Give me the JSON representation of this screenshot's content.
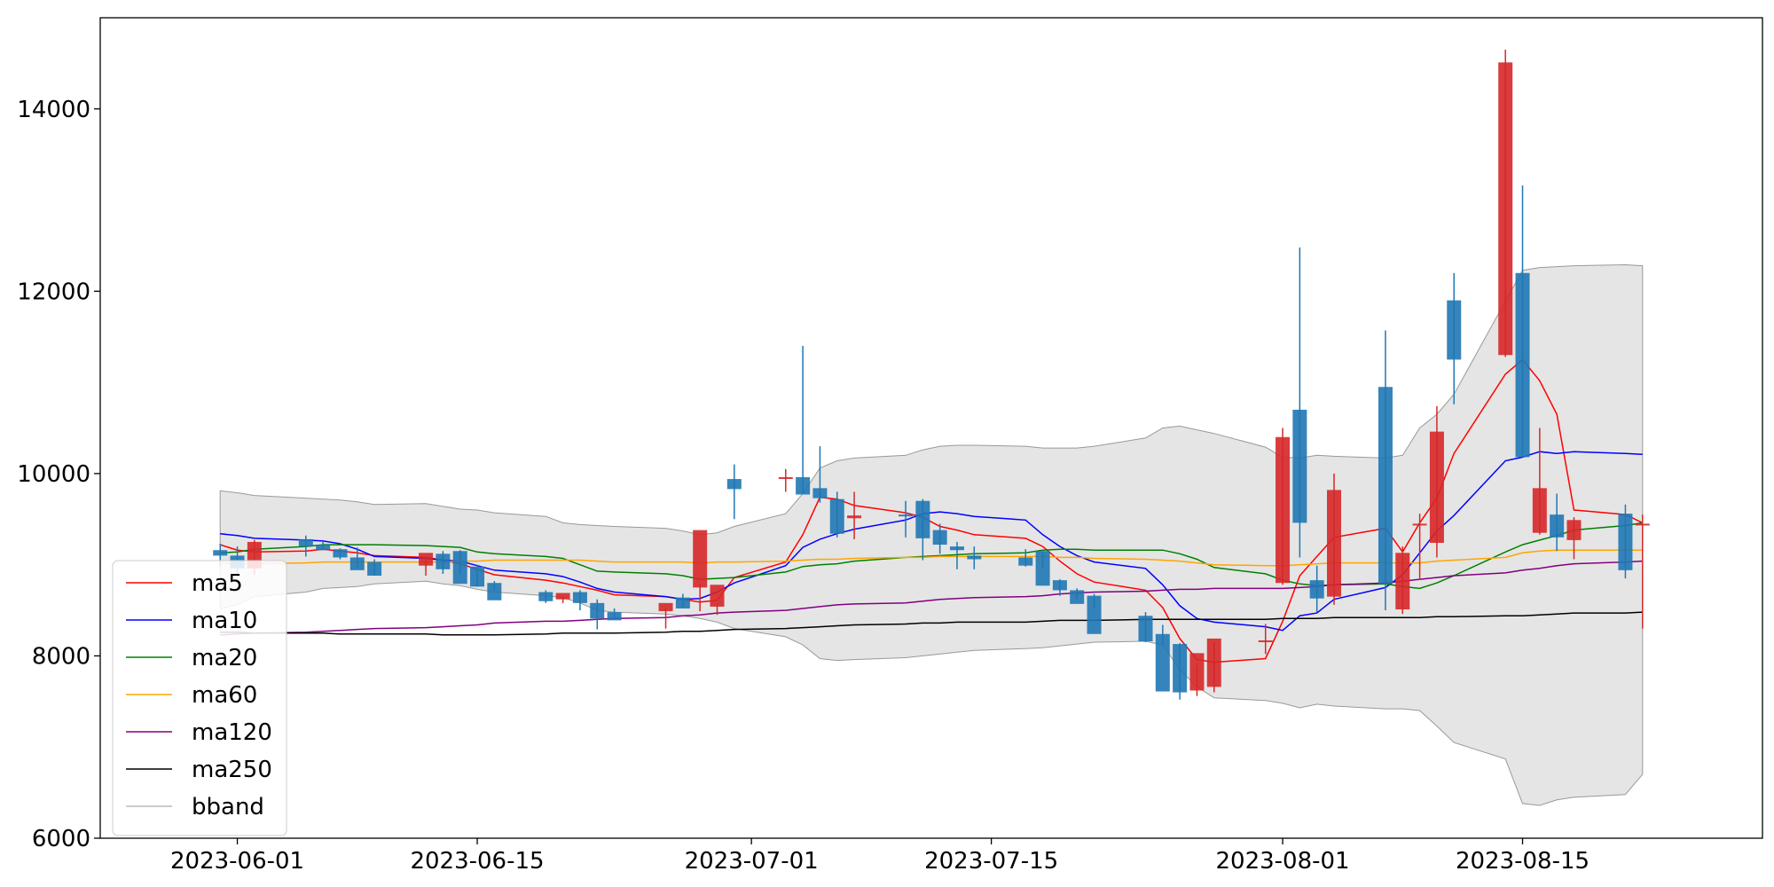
{
  "chart_data": {
    "type": "candlestick",
    "title": "",
    "xlabel": "",
    "ylabel": "",
    "ylim": [
      6000,
      15000
    ],
    "xlim": [
      "2023-05-24",
      "2023-08-29"
    ],
    "x_ticks": [
      "2023-06-01",
      "2023-06-15",
      "2023-07-01",
      "2023-07-15",
      "2023-08-01",
      "2023-08-15"
    ],
    "y_ticks": [
      6000,
      8000,
      10000,
      12000,
      14000
    ],
    "grid": false,
    "legend_position": "lower-left",
    "up_color": "#d62728",
    "down_color": "#1f77b4",
    "band_color": "#e5e5e5",
    "candles": {
      "date": [
        "2023-05-31",
        "2023-06-01",
        "2023-06-02",
        "2023-06-05",
        "2023-06-06",
        "2023-06-07",
        "2023-06-08",
        "2023-06-09",
        "2023-06-12",
        "2023-06-13",
        "2023-06-14",
        "2023-06-15",
        "2023-06-16",
        "2023-06-19",
        "2023-06-20",
        "2023-06-21",
        "2023-06-22",
        "2023-06-23",
        "2023-06-26",
        "2023-06-27",
        "2023-06-28",
        "2023-06-29",
        "2023-06-30",
        "2023-07-03",
        "2023-07-04",
        "2023-07-05",
        "2023-07-06",
        "2023-07-07",
        "2023-07-10",
        "2023-07-11",
        "2023-07-12",
        "2023-07-13",
        "2023-07-14",
        "2023-07-17",
        "2023-07-18",
        "2023-07-19",
        "2023-07-20",
        "2023-07-21",
        "2023-07-24",
        "2023-07-25",
        "2023-07-26",
        "2023-07-27",
        "2023-07-28",
        "2023-07-31",
        "2023-08-01",
        "2023-08-02",
        "2023-08-03",
        "2023-08-04",
        "2023-08-07",
        "2023-08-08",
        "2023-08-09",
        "2023-08-10",
        "2023-08-11",
        "2023-08-14",
        "2023-08-15",
        "2023-08-16",
        "2023-08-17",
        "2023-08-18",
        "2023-08-21",
        "2023-08-22"
      ],
      "open": [
        9160,
        9100,
        8960,
        9280,
        9220,
        9170,
        9080,
        9030,
        8990,
        9120,
        9150,
        8980,
        8800,
        8700,
        8620,
        8700,
        8580,
        8480,
        8490,
        8640,
        8750,
        8540,
        9940,
        9960,
        9960,
        9840,
        9720,
        9510,
        9550,
        9700,
        9380,
        9200,
        9100,
        9080,
        9150,
        8830,
        8720,
        8660,
        8440,
        8240,
        8130,
        7620,
        7660,
        8160,
        8800,
        10700,
        8830,
        8650,
        10950,
        8510,
        9450,
        9240,
        11900,
        11300,
        12200,
        9350,
        9550,
        9270,
        9560,
        9450
      ],
      "high": [
        9230,
        9200,
        9270,
        9320,
        9260,
        9180,
        9190,
        9060,
        9070,
        9150,
        9160,
        9000,
        8820,
        8720,
        8650,
        8720,
        8620,
        8520,
        8530,
        8680,
        8790,
        8570,
        10100,
        10050,
        11400,
        10300,
        9800,
        9800,
        9700,
        9720,
        9450,
        9250,
        9200,
        9170,
        9160,
        8840,
        8740,
        8680,
        8480,
        8340,
        8140,
        7900,
        8150,
        8350,
        10500,
        12480,
        8990,
        10000,
        11570,
        9200,
        9560,
        10740,
        12200,
        14650,
        13160,
        10500,
        9780,
        9520,
        9660,
        9550
      ],
      "low": [
        8980,
        8880,
        8890,
        9090,
        9160,
        9060,
        8960,
        8880,
        8880,
        8900,
        8890,
        8760,
        8720,
        8580,
        8580,
        8500,
        8290,
        8420,
        8300,
        8540,
        8490,
        8450,
        9500,
        9800,
        9780,
        9680,
        9300,
        9280,
        9300,
        9050,
        9120,
        8950,
        8950,
        8980,
        8960,
        8660,
        8620,
        8520,
        8150,
        8120,
        7520,
        7560,
        7600,
        8020,
        8780,
        9080,
        8480,
        8560,
        8500,
        8460,
        8850,
        9080,
        10760,
        11280,
        10200,
        9330,
        9150,
        9060,
        8850,
        8300
      ],
      "close": [
        9100,
        8960,
        9250,
        9200,
        9160,
        9080,
        8940,
        8880,
        9130,
        8950,
        8790,
        8760,
        8610,
        8600,
        8690,
        8580,
        8410,
        8390,
        8580,
        8520,
        9380,
        8780,
        9830,
        9960,
        9770,
        9730,
        9340,
        9540,
        9540,
        9290,
        9220,
        9160,
        9060,
        8990,
        8770,
        8720,
        8570,
        8240,
        8160,
        7610,
        7600,
        8030,
        8190,
        8170,
        10400,
        9460,
        8630,
        9820,
        8790,
        9130,
        9450,
        10460,
        11250,
        14510,
        10180,
        9840,
        9300,
        9490,
        8940,
        9450
      ]
    },
    "series": [
      {
        "name": "ma5",
        "color": "#ff0000",
        "values": [
          9220,
          9160,
          9140,
          9150,
          9170,
          9150,
          9130,
          9100,
          9080,
          9050,
          9010,
          8950,
          8890,
          8830,
          8800,
          8760,
          8720,
          8670,
          8650,
          8620,
          8590,
          8610,
          8860,
          9030,
          9330,
          9740,
          9720,
          9650,
          9570,
          9520,
          9420,
          9380,
          9330,
          9290,
          9200,
          9040,
          8900,
          8810,
          8720,
          8530,
          8190,
          7960,
          7930,
          7970,
          8380,
          8880,
          9090,
          9300,
          9400,
          9140,
          9460,
          9730,
          10220,
          11090,
          11250,
          11020,
          10650,
          9600,
          9550,
          9460
        ]
      },
      {
        "name": "ma10",
        "color": "#0000ff",
        "values": [
          9340,
          9320,
          9290,
          9270,
          9260,
          9230,
          9170,
          9090,
          9070,
          9050,
          9040,
          8990,
          8940,
          8900,
          8870,
          8810,
          8740,
          8700,
          8650,
          8620,
          8630,
          8700,
          8800,
          8990,
          9190,
          9280,
          9340,
          9390,
          9490,
          9560,
          9580,
          9560,
          9530,
          9490,
          9330,
          9200,
          9100,
          9030,
          8960,
          8780,
          8550,
          8410,
          8370,
          8320,
          8280,
          8440,
          8470,
          8620,
          8750,
          8890,
          9130,
          9370,
          9540,
          10140,
          10180,
          10240,
          10220,
          10240,
          10220,
          10210
        ]
      },
      {
        "name": "ma20",
        "color": "#008000",
        "values": [
          9130,
          9140,
          9170,
          9200,
          9220,
          9220,
          9220,
          9220,
          9210,
          9200,
          9190,
          9140,
          9120,
          9090,
          9070,
          9000,
          8930,
          8920,
          8900,
          8880,
          8840,
          8850,
          8860,
          8920,
          8980,
          9000,
          9010,
          9040,
          9080,
          9090,
          9100,
          9110,
          9120,
          9130,
          9160,
          9170,
          9170,
          9160,
          9160,
          9160,
          9120,
          9060,
          8970,
          8900,
          8830,
          8790,
          8770,
          8780,
          8790,
          8760,
          8740,
          8800,
          8880,
          9140,
          9220,
          9270,
          9320,
          9380,
          9430,
          9460
        ]
      },
      {
        "name": "ma60",
        "color": "#ffa500",
        "values": [
          9020,
          9010,
          9010,
          9020,
          9030,
          9030,
          9030,
          9030,
          9030,
          9030,
          9040,
          9040,
          9050,
          9050,
          9050,
          9050,
          9040,
          9030,
          9030,
          9030,
          9020,
          9030,
          9030,
          9040,
          9050,
          9060,
          9060,
          9070,
          9080,
          9080,
          9090,
          9090,
          9090,
          9090,
          9090,
          9080,
          9080,
          9070,
          9060,
          9050,
          9040,
          9020,
          9000,
          8990,
          8990,
          9000,
          9010,
          9020,
          9020,
          9020,
          9020,
          9040,
          9050,
          9080,
          9130,
          9150,
          9160,
          9160,
          9160,
          9160
        ]
      },
      {
        "name": "ma120",
        "color": "#800080",
        "values": [
          8230,
          8240,
          8250,
          8260,
          8270,
          8280,
          8290,
          8300,
          8310,
          8320,
          8330,
          8340,
          8360,
          8380,
          8380,
          8390,
          8400,
          8410,
          8420,
          8440,
          8450,
          8470,
          8480,
          8500,
          8520,
          8540,
          8560,
          8570,
          8580,
          8600,
          8620,
          8630,
          8640,
          8650,
          8660,
          8680,
          8690,
          8700,
          8710,
          8720,
          8730,
          8730,
          8740,
          8740,
          8740,
          8750,
          8760,
          8780,
          8800,
          8820,
          8840,
          8860,
          8880,
          8910,
          8940,
          8960,
          8990,
          9010,
          9030,
          9040
        ]
      },
      {
        "name": "ma250",
        "color": "#000000",
        "values": [
          8260,
          8260,
          8250,
          8250,
          8250,
          8240,
          8240,
          8240,
          8240,
          8230,
          8230,
          8230,
          8230,
          8240,
          8250,
          8250,
          8250,
          8250,
          8260,
          8270,
          8270,
          8280,
          8290,
          8300,
          8310,
          8320,
          8330,
          8340,
          8350,
          8360,
          8360,
          8370,
          8370,
          8370,
          8380,
          8390,
          8390,
          8390,
          8400,
          8400,
          8400,
          8400,
          8400,
          8400,
          8410,
          8410,
          8410,
          8420,
          8420,
          8420,
          8420,
          8430,
          8430,
          8440,
          8440,
          8450,
          8460,
          8470,
          8470,
          8480
        ]
      }
    ],
    "bband": {
      "name": "bband",
      "upper": [
        9810,
        9790,
        9760,
        9730,
        9720,
        9710,
        9690,
        9660,
        9670,
        9640,
        9610,
        9600,
        9570,
        9530,
        9460,
        9440,
        9430,
        9420,
        9400,
        9370,
        9330,
        9350,
        9420,
        9560,
        9780,
        10060,
        10140,
        10170,
        10200,
        10260,
        10300,
        10310,
        10310,
        10300,
        10280,
        10280,
        10280,
        10300,
        10390,
        10500,
        10520,
        10480,
        10440,
        10290,
        10180,
        10170,
        10200,
        10190,
        10170,
        10200,
        10500,
        10650,
        10870,
        11890,
        12230,
        12260,
        12270,
        12280,
        12290,
        12280
      ],
      "lower": [
        8520,
        8560,
        8650,
        8700,
        8740,
        8750,
        8760,
        8790,
        8820,
        8790,
        8770,
        8730,
        8700,
        8660,
        8640,
        8580,
        8500,
        8480,
        8460,
        8440,
        8410,
        8370,
        8300,
        8210,
        8120,
        7970,
        7950,
        7960,
        7980,
        8000,
        8020,
        8040,
        8060,
        8080,
        8090,
        8110,
        8130,
        8150,
        8160,
        8120,
        7850,
        7660,
        7540,
        7510,
        7480,
        7430,
        7470,
        7450,
        7420,
        7420,
        7400,
        7230,
        7050,
        6870,
        6380,
        6360,
        6420,
        6450,
        6480,
        6700
      ]
    }
  }
}
